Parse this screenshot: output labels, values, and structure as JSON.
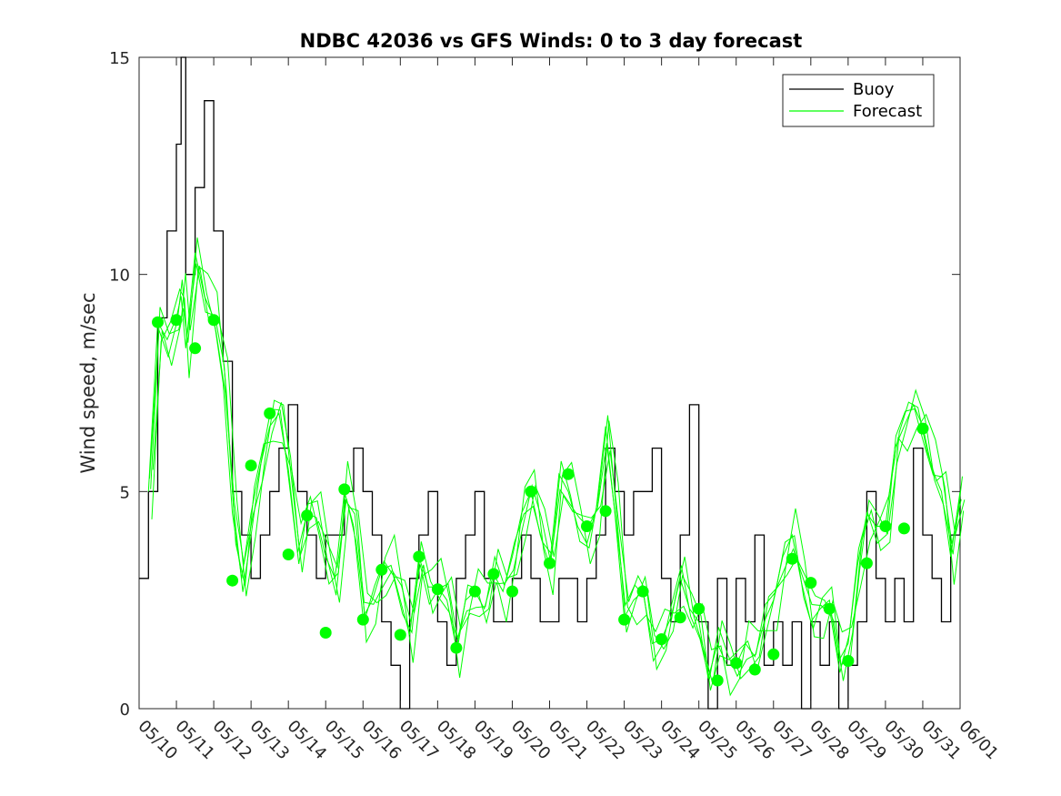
{
  "chart_data": {
    "type": "line",
    "title": "NDBC 42036 vs GFS Winds: 0 to 3 day forecast",
    "xlabel": "",
    "ylabel": "Wind speed, m/sec",
    "x_tick_labels": [
      "05/10",
      "05/11",
      "05/12",
      "05/13",
      "05/14",
      "05/15",
      "05/16",
      "05/17",
      "05/18",
      "05/19",
      "05/20",
      "05/21",
      "05/22",
      "05/23",
      "05/24",
      "05/25",
      "05/26",
      "05/27",
      "05/28",
      "05/29",
      "05/30",
      "05/31",
      "06/01"
    ],
    "y_ticks": [
      0,
      5,
      10,
      15
    ],
    "xlim": [
      "05/10",
      "06/01"
    ],
    "ylim": [
      0,
      15
    ],
    "grid": false,
    "legend_position": "top-right",
    "colors": {
      "buoy": "#000000",
      "forecast": "#00ff00",
      "axis": "#262626"
    },
    "series": [
      {
        "name": "Buoy",
        "style": "stepped black line",
        "x": [
          "05/10",
          "05/10 06h",
          "05/10 12h",
          "05/10 18h",
          "05/11",
          "05/11 03h",
          "05/11 06h",
          "05/11 12h",
          "05/11 18h",
          "05/12",
          "05/12 06h",
          "05/12 12h",
          "05/12 18h",
          "05/13",
          "05/13 06h",
          "05/13 12h",
          "05/13 18h",
          "05/14",
          "05/14 06h",
          "05/14 12h",
          "05/14 18h",
          "05/15",
          "05/15 06h",
          "05/15 12h",
          "05/15 18h",
          "05/16",
          "05/16 06h",
          "05/16 12h",
          "05/16 18h",
          "05/17",
          "05/17 06h",
          "05/17 12h",
          "05/17 18h",
          "05/18",
          "05/18 06h",
          "05/18 12h",
          "05/18 18h",
          "05/19",
          "05/19 06h",
          "05/19 12h",
          "05/19 18h",
          "05/20",
          "05/20 06h",
          "05/20 12h",
          "05/20 18h",
          "05/21",
          "05/21 06h",
          "05/21 12h",
          "05/21 18h",
          "05/22",
          "05/22 06h",
          "05/22 12h",
          "05/22 18h",
          "05/23",
          "05/23 06h",
          "05/23 12h",
          "05/23 18h",
          "05/24",
          "05/24 06h",
          "05/24 12h",
          "05/24 18h",
          "05/25",
          "05/25 06h",
          "05/25 12h",
          "05/25 18h",
          "05/26",
          "05/26 06h",
          "05/26 12h",
          "05/26 18h",
          "05/27",
          "05/27 06h",
          "05/27 12h",
          "05/27 18h",
          "05/28",
          "05/28 06h",
          "05/28 12h",
          "05/28 18h",
          "05/29",
          "05/29 06h",
          "05/29 12h",
          "05/29 18h",
          "05/30",
          "05/30 06h",
          "05/30 12h",
          "05/30 18h",
          "05/31",
          "05/31 06h",
          "05/31 12h",
          "05/31 18h",
          "06/01"
        ],
        "y": [
          3,
          5,
          9,
          11,
          13,
          15,
          10,
          12,
          14,
          11,
          8,
          5,
          4,
          3,
          4,
          5,
          6,
          7,
          5,
          4,
          3,
          4,
          4,
          5,
          6,
          5,
          4,
          2,
          1,
          0,
          3,
          4,
          5,
          2,
          1,
          3,
          4,
          5,
          3,
          2,
          2,
          3,
          4,
          3,
          2,
          2,
          3,
          3,
          2,
          3,
          4,
          6,
          5,
          4,
          5,
          5,
          6,
          3,
          2,
          4,
          7,
          2,
          0,
          3,
          1,
          3,
          2,
          4,
          1,
          2,
          1,
          2,
          0,
          2,
          1,
          2,
          0,
          1,
          2,
          5,
          3,
          2,
          3,
          2,
          6,
          4,
          3,
          2,
          4,
          5
        ]
      },
      {
        "name": "Forecast",
        "style": "multiple overlapping green lines with filled circle markers at forecast start points",
        "x": [
          "05/10",
          "05/10 06h",
          "05/10 12h",
          "05/10 18h",
          "05/11",
          "05/11 03h",
          "05/11 06h",
          "05/11 12h",
          "05/11 18h",
          "05/12",
          "05/12 06h",
          "05/12 12h",
          "05/12 18h",
          "05/13",
          "05/13 06h",
          "05/13 12h",
          "05/13 18h",
          "05/14",
          "05/14 06h",
          "05/14 12h",
          "05/14 18h",
          "05/15",
          "05/15 06h",
          "05/15 12h",
          "05/15 18h",
          "05/16",
          "05/16 06h",
          "05/16 12h",
          "05/16 18h",
          "05/17",
          "05/17 06h",
          "05/17 12h",
          "05/17 18h",
          "05/18",
          "05/18 06h",
          "05/18 12h",
          "05/18 18h",
          "05/19",
          "05/19 06h",
          "05/19 12h",
          "05/19 18h",
          "05/20",
          "05/20 06h",
          "05/20 12h",
          "05/20 18h",
          "05/21",
          "05/21 06h",
          "05/21 12h",
          "05/21 18h",
          "05/22",
          "05/22 06h",
          "05/22 12h",
          "05/22 18h",
          "05/23",
          "05/23 06h",
          "05/23 12h",
          "05/23 18h",
          "05/24",
          "05/24 06h",
          "05/24 12h",
          "05/24 18h",
          "05/25",
          "05/25 06h",
          "05/25 12h",
          "05/25 18h",
          "05/26",
          "05/26 06h",
          "05/26 12h",
          "05/26 18h",
          "05/27",
          "05/27 06h",
          "05/27 12h",
          "05/27 18h",
          "05/28",
          "05/28 06h",
          "05/28 12h",
          "05/28 18h",
          "05/29",
          "05/29 06h",
          "05/29 12h",
          "05/29 18h",
          "05/30",
          "05/30 06h",
          "05/30 12h",
          "05/30 18h",
          "05/31",
          "05/31 06h",
          "05/31 12h",
          "05/31 18h",
          "06/01"
        ],
        "y": [
          null,
          5,
          8.9,
          8.5,
          9.0,
          9.5,
          8.3,
          10.5,
          9.5,
          9.0,
          7.5,
          4.5,
          3.0,
          4.5,
          5.6,
          6.5,
          6.8,
          5.5,
          3.6,
          4.5,
          4.4,
          3.5,
          3.0,
          5.0,
          4.2,
          2.1,
          2.5,
          3.2,
          3.3,
          2.5,
          1.7,
          3.5,
          2.8,
          2.8,
          2.5,
          1.4,
          2.5,
          2.7,
          2.3,
          3.1,
          2.7,
          3.5,
          4.5,
          5.0,
          4.0,
          3.3,
          5.4,
          5.0,
          4.2,
          3.8,
          4.6,
          6.5,
          4.5,
          2.1,
          2.5,
          2.7,
          1.5,
          1.6,
          2.1,
          3.0,
          2.3,
          2.0,
          0.7,
          1.5,
          1.0,
          1.0,
          1.5,
          1.2,
          2.0,
          2.5,
          3.5,
          4.0,
          2.9,
          2.0,
          2.3,
          2.5,
          1.1,
          1.5,
          3.3,
          4.5,
          4.2,
          4.2,
          6.0,
          6.5,
          7.0,
          6.5,
          5.5,
          5.0,
          3.5,
          5.0
        ],
        "markers": {
          "x": [
            "05/10 12h",
            "05/11",
            "05/11 12h",
            "05/12",
            "05/12 12h",
            "05/13",
            "05/13 12h",
            "05/14",
            "05/14 12h",
            "05/15",
            "05/15 12h",
            "05/16",
            "05/16 12h",
            "05/17",
            "05/17 12h",
            "05/18",
            "05/18 12h",
            "05/19",
            "05/19 12h",
            "05/20",
            "05/20 12h",
            "05/21",
            "05/21 12h",
            "05/22",
            "05/22 12h",
            "05/23",
            "05/23 12h",
            "05/24",
            "05/24 12h",
            "05/25",
            "05/25 12h",
            "05/26",
            "05/26 12h",
            "05/27",
            "05/27 12h",
            "05/28",
            "05/28 12h",
            "05/29",
            "05/29 12h",
            "05/30",
            "05/30 12h",
            "05/31"
          ],
          "y": [
            8.9,
            8.95,
            8.3,
            8.95,
            2.95,
            5.6,
            6.8,
            3.55,
            4.45,
            1.75,
            5.05,
            2.05,
            3.2,
            1.7,
            3.5,
            2.75,
            1.4,
            2.7,
            3.1,
            2.7,
            5.0,
            3.35,
            5.4,
            4.2,
            4.55,
            2.05,
            2.7,
            1.6,
            2.1,
            2.3,
            0.65,
            1.05,
            0.9,
            1.25,
            3.45,
            2.9,
            2.3,
            1.1,
            3.35,
            4.2,
            4.15,
            6.45
          ]
        }
      }
    ]
  }
}
